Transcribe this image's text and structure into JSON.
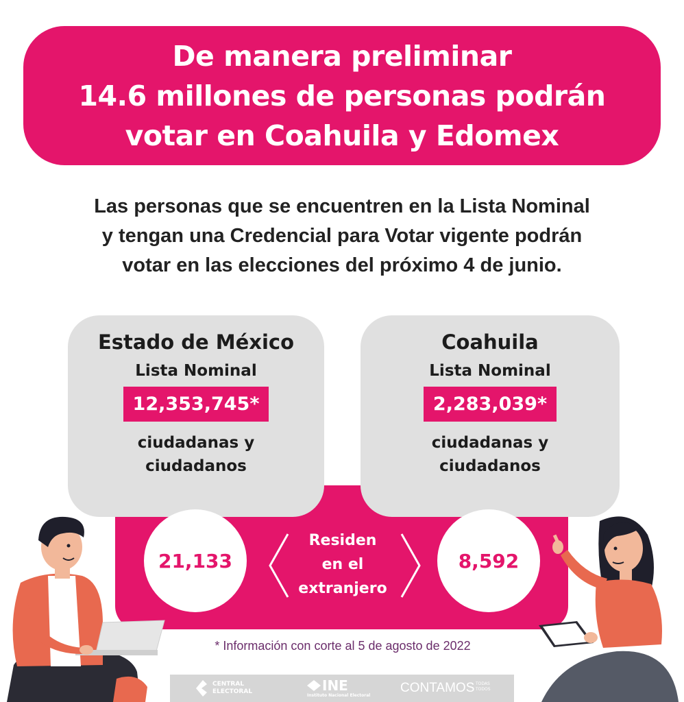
{
  "header": {
    "lines": [
      "De manera preliminar",
      "14.6 millones de personas podrán",
      "votar en Coahuila y Edomex"
    ]
  },
  "subtitle": {
    "lines": [
      "Las personas que se encuentren en la Lista Nominal",
      "y tengan una Credencial para Votar vigente podrán",
      "votar en las elecciones del próximo 4 de junio."
    ]
  },
  "cards": [
    {
      "title": "Estado de México",
      "list_label": "Lista Nominal",
      "value": "12,353,745*",
      "caption": [
        "ciudadanas y",
        "ciudadanos"
      ],
      "abroad": "21,133"
    },
    {
      "title": "Coahuila",
      "list_label": "Lista Nominal",
      "value": "2,283,039*",
      "caption": [
        "ciudadanas y",
        "ciudadanos"
      ],
      "abroad": "8,592"
    }
  ],
  "abroad_label": [
    "Residen",
    "en el",
    "extranjero"
  ],
  "footnote": "* Información con corte al 5 de agosto de 2022",
  "logos": {
    "central_electoral": [
      "CENTRAL",
      "ELECTORAL"
    ],
    "ine": "INE",
    "ine_sub": "Instituto Nacional Electoral",
    "contamos": "CONTAMOS",
    "contamos_small": [
      "TODAS",
      "TODOS"
    ]
  },
  "colors": {
    "accent": "#e4156b",
    "card": "#e0e0e0",
    "footnote": "#6b2d6b"
  }
}
